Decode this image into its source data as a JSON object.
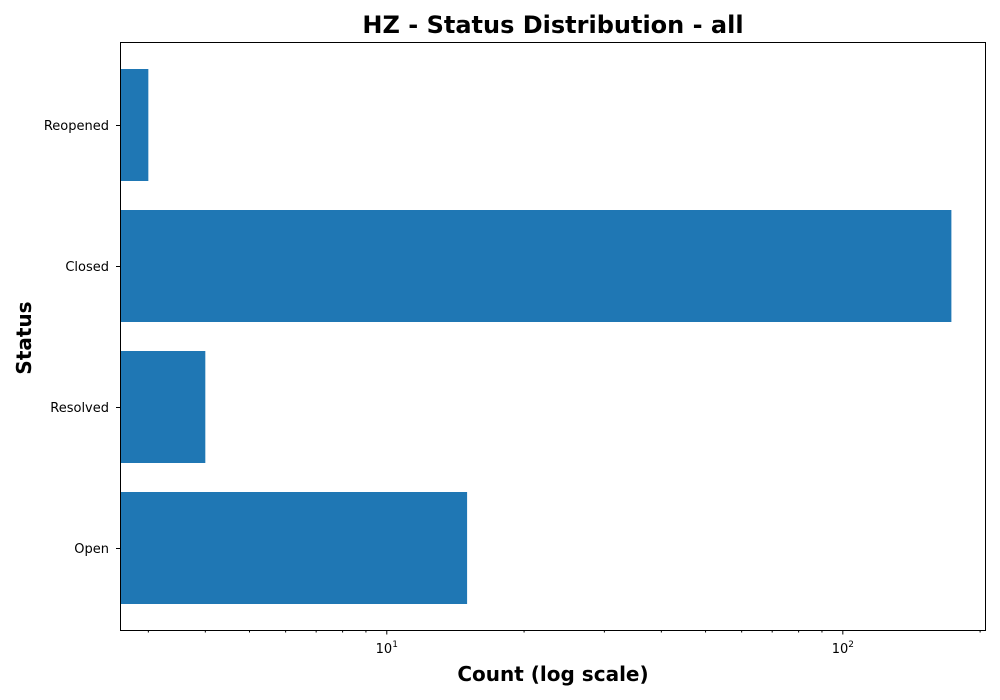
{
  "chart_data": {
    "type": "bar",
    "orientation": "horizontal",
    "title": "HZ - Status Distribution - all",
    "xlabel": "Count (log scale)",
    "ylabel": "Status",
    "x_scale": "log",
    "xlim": [
      2.6,
      205
    ],
    "x_ticks": [
      {
        "value": 10,
        "base": "10",
        "exp": "1"
      },
      {
        "value": 100,
        "base": "10",
        "exp": "2"
      }
    ],
    "categories": [
      "Open",
      "Resolved",
      "Closed",
      "Reopened"
    ],
    "values": [
      15,
      4,
      173,
      3
    ],
    "bar_color": "#1f77b4",
    "grid": false,
    "legend": "none"
  }
}
